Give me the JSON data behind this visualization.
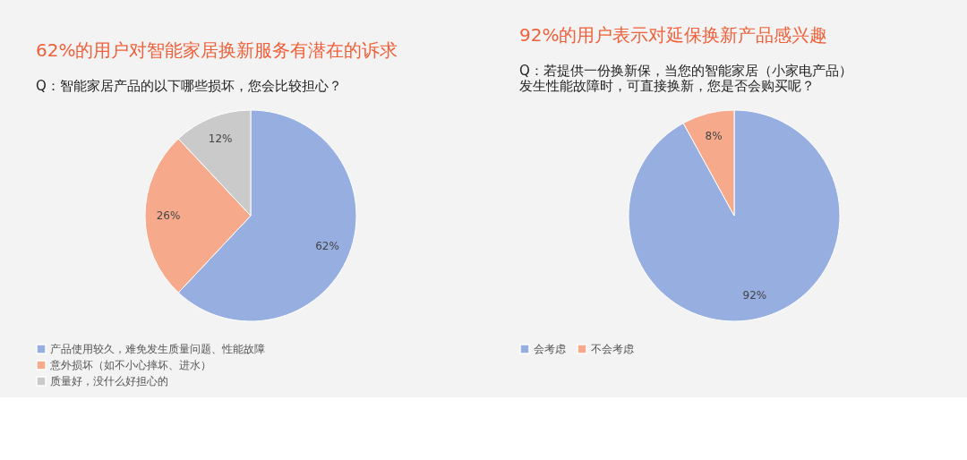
{
  "chart_data": [
    {
      "type": "pie",
      "title": "62%的用户对智能家居换新服务有潜在的诉求",
      "subtitle": "Q：智能家居产品的以下哪些损坏，您会比较担心？",
      "categories": [
        "产品使用较久，难免发生质量问题、性能故障",
        "意外损坏（如不小心摔坏、进水）",
        "质量好，没什么好担心的"
      ],
      "values": [
        62,
        26,
        12
      ],
      "colors": [
        "#97aee0",
        "#f6aa8b",
        "#cacaca"
      ],
      "value_labels": [
        "62%",
        "26%",
        "12%"
      ],
      "legend": "bottom"
    },
    {
      "type": "pie",
      "title": "92%的用户表示对延保换新产品感兴趣",
      "subtitle": "Q：若提供一份换新保，当您的智能家居（小家电产品）发生性能故障时，可直接换新，您是否会购买呢？",
      "categories": [
        "会考虑",
        "不会考虑"
      ],
      "values": [
        92,
        8
      ],
      "colors": [
        "#97aee0",
        "#f6aa8b"
      ],
      "value_labels": [
        "92%",
        "8%"
      ],
      "legend": "bottom"
    }
  ]
}
